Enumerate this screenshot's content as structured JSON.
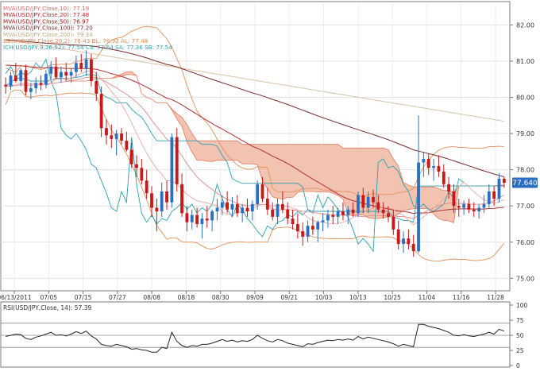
{
  "chart_data": {
    "type": "candlestick",
    "price_panel": {
      "y_ticks": [
        "75.00",
        "76.00",
        "77.00",
        "78.00",
        "79.00",
        "80.00",
        "81.00",
        "82.00"
      ],
      "ylim": [
        74.7,
        82.6
      ],
      "last_price_label": "77.640",
      "legend": [
        {
          "text": "MVA(USD/JPY,Close,10): 77.19",
          "color": "#e06666"
        },
        {
          "text": "MVA(USD/JPY,Close,20): 77.48",
          "color": "#cc2222"
        },
        {
          "text": "MVA(USD/JPY,Close,50): 76.97",
          "color": "#aa1111"
        },
        {
          "text": "MVA(USD/JPY,Close,100): 77.20",
          "color": "#7a2a2a"
        },
        {
          "text": "MVA(USD/JPY,Close,200): 79.34",
          "color": "#c8a878"
        },
        {
          "text": "BB(USD/JPY,Close,20,2): 76.43  BL: 76.92  AL: 77.48",
          "color": "#e08a50"
        },
        {
          "text": "ICH(USD/JPY,9,26,52): 77.54  CS: 77.64  SA: 77.36  SB: 77.54",
          "color": "#2aa0b0"
        }
      ],
      "x_labels": [
        "06/13/2011",
        "07/05",
        "07/15",
        "07/27",
        "08/08",
        "08/18",
        "08/30",
        "09/09",
        "09/21",
        "10/03",
        "10/13",
        "10/25",
        "11/04",
        "11/16",
        "11/28"
      ],
      "candles": [
        [
          80.35,
          80.55,
          80.1,
          80.3
        ],
        [
          80.3,
          80.7,
          80.2,
          80.6
        ],
        [
          80.6,
          80.95,
          80.4,
          80.45
        ],
        [
          80.45,
          80.8,
          80.3,
          80.75
        ],
        [
          80.75,
          80.9,
          80.05,
          80.15
        ],
        [
          80.15,
          80.4,
          79.95,
          80.25
        ],
        [
          80.25,
          80.55,
          80.1,
          80.4
        ],
        [
          80.4,
          80.6,
          80.2,
          80.35
        ],
        [
          80.35,
          80.75,
          80.25,
          80.65
        ],
        [
          80.65,
          81.0,
          80.5,
          80.85
        ],
        [
          80.85,
          81.1,
          80.5,
          80.55
        ],
        [
          80.55,
          80.85,
          80.4,
          80.7
        ],
        [
          80.7,
          80.95,
          80.45,
          80.6
        ],
        [
          80.6,
          80.8,
          80.4,
          80.7
        ],
        [
          80.7,
          81.15,
          80.55,
          80.95
        ],
        [
          80.95,
          81.2,
          80.7,
          80.8
        ],
        [
          80.8,
          81.3,
          80.6,
          81.05
        ],
        [
          81.05,
          81.2,
          80.3,
          80.45
        ],
        [
          80.45,
          80.7,
          79.9,
          80.1
        ],
        [
          80.1,
          80.3,
          78.9,
          79.15
        ],
        [
          79.15,
          79.4,
          78.7,
          78.95
        ],
        [
          78.95,
          79.25,
          78.6,
          78.85
        ],
        [
          78.85,
          79.1,
          78.4,
          79.0
        ],
        [
          79.0,
          79.15,
          78.7,
          78.8
        ],
        [
          78.8,
          79.05,
          78.5,
          78.55
        ],
        [
          78.55,
          78.75,
          78.05,
          78.15
        ],
        [
          78.15,
          78.4,
          77.8,
          78.05
        ],
        [
          78.05,
          78.3,
          77.6,
          77.7
        ],
        [
          77.7,
          78.0,
          77.2,
          77.35
        ],
        [
          77.35,
          77.55,
          76.7,
          76.95
        ],
        [
          76.95,
          77.2,
          76.3,
          76.85
        ],
        [
          76.85,
          77.65,
          76.7,
          77.4
        ],
        [
          77.4,
          77.7,
          76.9,
          77.1
        ],
        [
          77.1,
          79.0,
          76.95,
          78.9
        ],
        [
          78.9,
          79.15,
          77.4,
          77.6
        ],
        [
          77.6,
          77.9,
          76.7,
          76.8
        ],
        [
          76.8,
          77.0,
          76.3,
          76.55
        ],
        [
          76.55,
          76.9,
          76.35,
          76.75
        ],
        [
          76.75,
          76.95,
          76.4,
          76.5
        ],
        [
          76.5,
          76.8,
          76.1,
          76.65
        ],
        [
          76.65,
          77.0,
          76.4,
          76.6
        ],
        [
          76.6,
          76.9,
          76.3,
          76.85
        ],
        [
          76.85,
          77.2,
          76.6,
          76.95
        ],
        [
          76.95,
          77.3,
          76.75,
          77.1
        ],
        [
          77.1,
          77.4,
          76.8,
          76.9
        ],
        [
          76.9,
          77.25,
          76.7,
          77.05
        ],
        [
          77.05,
          77.3,
          76.7,
          76.8
        ],
        [
          76.8,
          77.05,
          76.55,
          76.95
        ],
        [
          76.95,
          77.2,
          76.7,
          76.85
        ],
        [
          76.85,
          77.15,
          76.6,
          77.05
        ],
        [
          77.05,
          77.7,
          76.9,
          77.6
        ],
        [
          77.6,
          77.8,
          77.1,
          77.2
        ],
        [
          77.2,
          77.5,
          76.75,
          76.9
        ],
        [
          76.9,
          77.1,
          76.6,
          76.7
        ],
        [
          76.7,
          77.2,
          76.5,
          77.05
        ],
        [
          77.05,
          77.4,
          76.8,
          76.9
        ],
        [
          76.9,
          77.1,
          76.5,
          76.65
        ],
        [
          76.65,
          76.9,
          76.35,
          76.5
        ],
        [
          76.5,
          76.8,
          76.1,
          76.3
        ],
        [
          76.3,
          76.55,
          75.9,
          76.15
        ],
        [
          76.15,
          76.6,
          76.0,
          76.45
        ],
        [
          76.45,
          76.7,
          76.2,
          76.35
        ],
        [
          76.35,
          76.6,
          76.0,
          76.55
        ],
        [
          76.55,
          76.8,
          76.3,
          76.6
        ],
        [
          76.6,
          76.9,
          76.4,
          76.75
        ],
        [
          76.75,
          77.0,
          76.5,
          76.7
        ],
        [
          76.7,
          76.95,
          76.5,
          76.85
        ],
        [
          76.85,
          77.1,
          76.6,
          76.75
        ],
        [
          76.75,
          77.0,
          76.5,
          76.9
        ],
        [
          76.9,
          77.1,
          76.7,
          76.8
        ],
        [
          76.8,
          77.4,
          76.7,
          77.3
        ],
        [
          77.3,
          77.5,
          76.8,
          76.95
        ],
        [
          76.95,
          77.4,
          76.8,
          77.25
        ],
        [
          77.25,
          77.45,
          76.95,
          77.1
        ],
        [
          77.1,
          77.3,
          76.8,
          76.9
        ],
        [
          76.9,
          77.1,
          76.65,
          76.8
        ],
        [
          76.8,
          77.0,
          76.55,
          76.7
        ],
        [
          76.7,
          76.9,
          76.2,
          76.35
        ],
        [
          76.35,
          76.6,
          75.8,
          75.95
        ],
        [
          75.95,
          76.3,
          75.7,
          76.1
        ],
        [
          76.1,
          76.35,
          75.8,
          75.95
        ],
        [
          75.95,
          76.2,
          75.6,
          75.75
        ],
        [
          75.75,
          79.5,
          75.7,
          78.2
        ],
        [
          78.2,
          78.5,
          77.8,
          78.3
        ],
        [
          78.3,
          78.45,
          77.85,
          78.05
        ],
        [
          78.05,
          78.3,
          77.7,
          78.1
        ],
        [
          78.1,
          78.4,
          77.8,
          77.95
        ],
        [
          77.95,
          78.15,
          77.5,
          77.6
        ],
        [
          77.6,
          77.8,
          77.2,
          77.4
        ],
        [
          77.4,
          77.6,
          76.8,
          77.0
        ],
        [
          77.0,
          77.2,
          76.7,
          76.95
        ],
        [
          76.95,
          77.15,
          76.75,
          77.05
        ],
        [
          77.05,
          77.2,
          76.8,
          76.9
        ],
        [
          76.9,
          77.1,
          76.7,
          76.85
        ],
        [
          76.85,
          77.05,
          76.65,
          76.95
        ],
        [
          76.95,
          77.3,
          76.8,
          77.05
        ],
        [
          77.05,
          77.6,
          76.95,
          77.4
        ],
        [
          77.4,
          77.55,
          77.0,
          77.2
        ],
        [
          77.2,
          77.9,
          77.1,
          77.75
        ],
        [
          77.75,
          77.8,
          77.5,
          77.64
        ]
      ]
    },
    "rsi_panel": {
      "legend": "RSI(USD/JPY,Close, 14): 57.39",
      "ylim": [
        0,
        100
      ],
      "y_ticks": [
        "0",
        "25",
        "50",
        "75",
        "100"
      ],
      "guide_levels": [
        30,
        50,
        70
      ],
      "values": [
        48,
        50,
        52,
        51,
        45,
        43,
        47,
        49,
        52,
        55,
        50,
        51,
        49,
        52,
        56,
        53,
        57,
        49,
        44,
        35,
        33,
        32,
        35,
        33,
        31,
        27,
        28,
        26,
        25,
        22,
        22,
        30,
        28,
        55,
        40,
        33,
        30,
        33,
        32,
        35,
        35,
        37,
        40,
        43,
        40,
        42,
        39,
        41,
        40,
        43,
        50,
        45,
        41,
        39,
        43,
        41,
        37,
        35,
        33,
        31,
        36,
        35,
        38,
        40,
        42,
        41,
        43,
        42,
        44,
        42,
        48,
        44,
        47,
        45,
        43,
        41,
        39,
        36,
        32,
        35,
        33,
        31,
        68,
        68,
        65,
        63,
        61,
        58,
        55,
        50,
        49,
        51,
        49,
        48,
        50,
        52,
        55,
        52,
        60,
        57
      ]
    },
    "colors": {
      "bull": "#2a6fc2",
      "bear": "#c81818",
      "cloud_fill": "#f3c3b2",
      "cloud_edge": "#e07a60",
      "ma200": "#d8c4a4",
      "ma100": "#7a2a2a",
      "ma50": "#b03030",
      "bb": "#e4905a",
      "ichimoku": "#2aa0b0",
      "rsi": "#222222",
      "last_label_bg": "#2a6fc2"
    }
  }
}
